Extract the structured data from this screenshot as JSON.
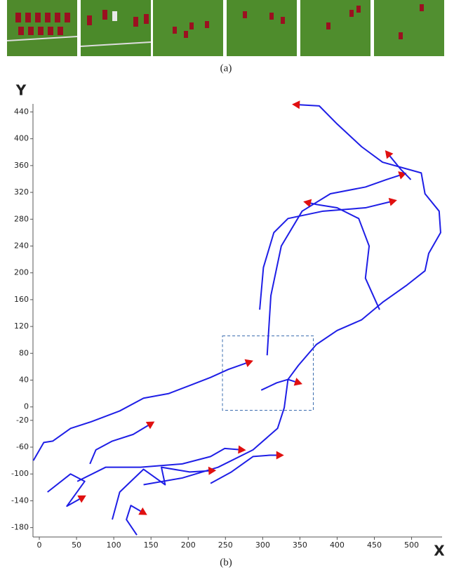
{
  "panel_a": {
    "label": "(a)"
  },
  "chart_data": {
    "type": "line",
    "caption": "(b)",
    "x_label": "X",
    "y_label": "Y",
    "color": "#1e1ee6",
    "marker_color": "#e01010",
    "xlim": [
      -8.5,
      540
    ],
    "ylim": [
      -194,
      452
    ],
    "xticks": [
      0,
      50,
      100,
      150,
      200,
      250,
      300,
      350,
      400,
      450,
      500
    ],
    "yticks": [
      440,
      400,
      360,
      320,
      280,
      240,
      200,
      160,
      120,
      80,
      40,
      0,
      -20,
      -60,
      -100,
      -140,
      -180
    ],
    "box": {
      "x": [
        246,
        368
      ],
      "y": [
        -5,
        106
      ]
    },
    "series": [
      {
        "x": [
          140,
          192,
          240,
          287,
          320,
          329,
          334,
          348,
          372,
          400,
          433,
          461,
          494,
          518,
          523,
          539,
          537,
          518,
          513,
          461,
          433,
          400,
          376,
          345
        ],
        "values": [
          -116,
          -106,
          -90,
          -64,
          -32,
          -1,
          41,
          62,
          93,
          114,
          130,
          156,
          182,
          203,
          229,
          260,
          292,
          318,
          349,
          365,
          388,
          422,
          449,
          451
        ]
      },
      {
        "x": [
          -8,
          6,
          18,
          42,
          70,
          108,
          140,
          174,
          202,
          230,
          254,
          282
        ],
        "values": [
          -80,
          -53,
          -51,
          -32,
          -22,
          -6,
          13,
          20,
          32,
          44,
          56,
          67
        ]
      },
      {
        "x": [
          68,
          76,
          98,
          126,
          150
        ],
        "values": [
          -85,
          -64,
          -51,
          -41,
          -25
        ]
      },
      {
        "x": [
          298,
          319,
          334,
          348
        ],
        "values": [
          25,
          36,
          41,
          36
        ]
      },
      {
        "x": [
          51,
          89,
          136,
          192,
          230,
          249,
          272
        ],
        "values": [
          -111,
          -90,
          -90,
          -85,
          -74,
          -62,
          -64
        ]
      },
      {
        "x": [
          98,
          108,
          140,
          169,
          164,
          202,
          232
        ],
        "values": [
          -168,
          -127,
          -93,
          -116,
          -90,
          -97,
          -95
        ]
      },
      {
        "x": [
          11,
          42,
          61,
          37,
          58
        ],
        "values": [
          -127,
          -100,
          -111,
          -148,
          -135
        ]
      },
      {
        "x": [
          131,
          117,
          123,
          140
        ],
        "values": [
          -191,
          -168,
          -147,
          -158
        ]
      },
      {
        "x": [
          230,
          258,
          287,
          310,
          323
        ],
        "values": [
          -114,
          -97,
          -74,
          -72,
          -72
        ]
      },
      {
        "x": [
          457,
          438,
          443,
          429,
          400,
          372,
          360
        ],
        "values": [
          145,
          192,
          240,
          281,
          297,
          302,
          305
        ]
      },
      {
        "x": [
          296,
          301,
          315,
          334,
          381,
          438,
          475
        ],
        "values": [
          145,
          208,
          260,
          281,
          292,
          297,
          307
        ]
      },
      {
        "x": [
          306,
          311,
          325,
          353,
          391,
          438,
          466,
          488
        ],
        "values": [
          77,
          166,
          240,
          292,
          318,
          328,
          339,
          347
        ]
      },
      {
        "x": [
          499,
          485,
          468
        ],
        "values": [
          339,
          355,
          378
        ]
      }
    ]
  }
}
